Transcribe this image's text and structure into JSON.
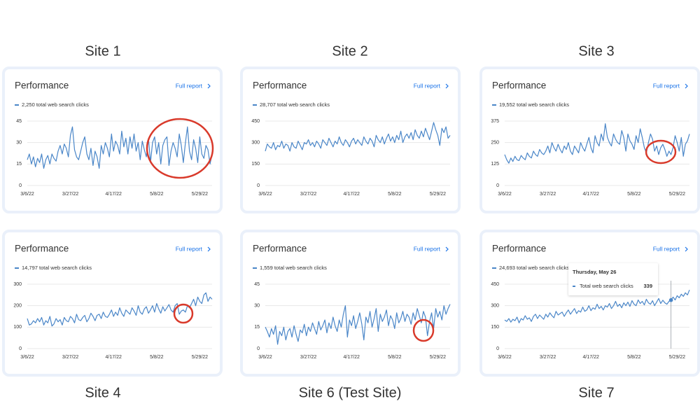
{
  "chart_data": [
    {
      "type": "line",
      "caption": "Site 1",
      "title": "Performance",
      "link": "Full report",
      "categories": [
        "3/6/22",
        null,
        null,
        null,
        null,
        null,
        null,
        null,
        null,
        null,
        null,
        null,
        null,
        null,
        null,
        null,
        null,
        null,
        null,
        null,
        null,
        "3/27/22",
        null,
        null,
        null,
        null,
        null,
        null,
        null,
        null,
        null,
        null,
        null,
        null,
        null,
        null,
        null,
        null,
        null,
        null,
        null,
        null,
        "4/17/22",
        null,
        null,
        null,
        null,
        null,
        null,
        null,
        null,
        null,
        null,
        null,
        null,
        null,
        null,
        null,
        null,
        null,
        null,
        null,
        null,
        "5/8/22",
        null,
        null,
        null,
        null,
        null,
        null,
        null,
        null,
        null,
        null,
        null,
        null,
        null,
        null,
        null,
        null,
        null,
        null,
        null,
        null,
        "5/29/22",
        null,
        null,
        null,
        null,
        null,
        null
      ],
      "series": [
        {
          "name": "2,250 total web search clicks",
          "color": "#4a86c8",
          "values": [
            18,
            22,
            15,
            20,
            13,
            19,
            16,
            22,
            12,
            18,
            21,
            15,
            22,
            19,
            17,
            24,
            28,
            22,
            29,
            26,
            20,
            35,
            41,
            25,
            20,
            18,
            24,
            30,
            34,
            22,
            18,
            26,
            14,
            24,
            20,
            12,
            28,
            22,
            30,
            26,
            20,
            36,
            24,
            31,
            28,
            22,
            38,
            27,
            33,
            22,
            34,
            26,
            36,
            24,
            30,
            18,
            31,
            25,
            20,
            33,
            16,
            30,
            34,
            22,
            30,
            15,
            28,
            32,
            34,
            14,
            24,
            30,
            26,
            20,
            36,
            28,
            16,
            30,
            41,
            24,
            18,
            32,
            26,
            16,
            34,
            22,
            19,
            28,
            25,
            15,
            22
          ]
        }
      ],
      "ylim": [
        0,
        45
      ],
      "yticks": [
        0,
        15,
        30,
        45
      ],
      "grid": true
    },
    {
      "type": "line",
      "caption": "Site 2",
      "title": "Performance",
      "link": "Full report",
      "categories": [
        "3/6/22",
        null,
        null,
        null,
        null,
        null,
        null,
        null,
        null,
        null,
        null,
        null,
        null,
        null,
        null,
        null,
        null,
        null,
        null,
        null,
        null,
        "3/27/22",
        null,
        null,
        null,
        null,
        null,
        null,
        null,
        null,
        null,
        null,
        null,
        null,
        null,
        null,
        null,
        null,
        null,
        null,
        null,
        null,
        "4/17/22",
        null,
        null,
        null,
        null,
        null,
        null,
        null,
        null,
        null,
        null,
        null,
        null,
        null,
        null,
        null,
        null,
        null,
        null,
        null,
        null,
        "5/8/22",
        null,
        null,
        null,
        null,
        null,
        null,
        null,
        null,
        null,
        null,
        null,
        null,
        null,
        null,
        null,
        null,
        null,
        null,
        null,
        null,
        "5/29/22",
        null,
        null,
        null,
        null,
        null,
        null
      ],
      "series": [
        {
          "name": "28,707 total web search clicks",
          "color": "#4a86c8",
          "values": [
            240,
            290,
            270,
            260,
            300,
            250,
            280,
            270,
            310,
            260,
            290,
            280,
            240,
            300,
            270,
            260,
            310,
            280,
            250,
            300,
            290,
            320,
            280,
            300,
            270,
            310,
            290,
            260,
            320,
            300,
            280,
            330,
            300,
            270,
            310,
            290,
            340,
            300,
            280,
            320,
            300,
            270,
            310,
            330,
            290,
            320,
            300,
            280,
            340,
            310,
            290,
            330,
            310,
            270,
            350,
            320,
            300,
            340,
            290,
            330,
            360,
            310,
            340,
            300,
            350,
            320,
            380,
            300,
            340,
            360,
            330,
            370,
            320,
            390,
            350,
            330,
            380,
            340,
            400,
            360,
            320,
            380,
            440,
            390,
            350,
            280,
            400,
            370,
            410,
            330,
            350
          ]
        }
      ],
      "ylim": [
        0,
        450
      ],
      "yticks": [
        0,
        150,
        300,
        450
      ],
      "grid": true
    },
    {
      "type": "line",
      "caption": "Site 3",
      "title": "Performance",
      "link": "Full report",
      "categories": [
        "3/6/22",
        null,
        null,
        null,
        null,
        null,
        null,
        null,
        null,
        null,
        null,
        null,
        null,
        null,
        null,
        null,
        null,
        null,
        null,
        null,
        null,
        "3/27/22",
        null,
        null,
        null,
        null,
        null,
        null,
        null,
        null,
        null,
        null,
        null,
        null,
        null,
        null,
        null,
        null,
        null,
        null,
        null,
        null,
        "4/17/22",
        null,
        null,
        null,
        null,
        null,
        null,
        null,
        null,
        null,
        null,
        null,
        null,
        null,
        null,
        null,
        null,
        null,
        null,
        null,
        null,
        "5/8/22",
        null,
        null,
        null,
        null,
        null,
        null,
        null,
        null,
        null,
        null,
        null,
        null,
        null,
        null,
        null,
        null,
        null,
        null,
        null,
        null,
        "5/29/22",
        null,
        null,
        null,
        null,
        null,
        null
      ],
      "series": [
        {
          "name": "19,552 total web search clicks",
          "color": "#4a86c8",
          "values": [
            180,
            150,
            130,
            160,
            140,
            170,
            150,
            145,
            175,
            160,
            150,
            190,
            170,
            160,
            200,
            180,
            170,
            210,
            190,
            180,
            200,
            230,
            190,
            250,
            220,
            200,
            240,
            210,
            190,
            230,
            210,
            250,
            200,
            180,
            230,
            210,
            190,
            250,
            220,
            200,
            240,
            280,
            220,
            190,
            290,
            250,
            230,
            300,
            260,
            360,
            280,
            250,
            230,
            300,
            270,
            250,
            240,
            320,
            280,
            200,
            300,
            260,
            240,
            210,
            290,
            250,
            330,
            280,
            220,
            190,
            250,
            300,
            270,
            200,
            230,
            180,
            220,
            240,
            210,
            170,
            200,
            180,
            220,
            290,
            250,
            200,
            280,
            170,
            240,
            260,
            300
          ]
        }
      ],
      "ylim": [
        0,
        375
      ],
      "yticks": [
        0,
        125,
        250,
        375
      ],
      "grid": true
    },
    {
      "type": "line",
      "caption": "Site 4",
      "title": "Performance",
      "link": "Full report",
      "categories": [
        "3/6/22",
        null,
        null,
        null,
        null,
        null,
        null,
        null,
        null,
        null,
        null,
        null,
        null,
        null,
        null,
        null,
        null,
        null,
        null,
        null,
        null,
        "3/27/22",
        null,
        null,
        null,
        null,
        null,
        null,
        null,
        null,
        null,
        null,
        null,
        null,
        null,
        null,
        null,
        null,
        null,
        null,
        null,
        null,
        "4/17/22",
        null,
        null,
        null,
        null,
        null,
        null,
        null,
        null,
        null,
        null,
        null,
        null,
        null,
        null,
        null,
        null,
        null,
        null,
        null,
        null,
        "5/8/22",
        null,
        null,
        null,
        null,
        null,
        null,
        null,
        null,
        null,
        null,
        null,
        null,
        null,
        null,
        null,
        null,
        null,
        null,
        null,
        null,
        "5/29/22",
        null,
        null,
        null,
        null,
        null,
        null
      ],
      "series": [
        {
          "name": "14,797 total web search clicks",
          "color": "#4a86c8",
          "values": [
            140,
            110,
            115,
            130,
            120,
            140,
            125,
            145,
            110,
            130,
            120,
            150,
            105,
            115,
            140,
            125,
            135,
            110,
            145,
            130,
            125,
            150,
            140,
            120,
            160,
            135,
            130,
            145,
            155,
            125,
            140,
            165,
            150,
            130,
            155,
            160,
            140,
            170,
            150,
            145,
            160,
            180,
            150,
            170,
            155,
            190,
            165,
            150,
            180,
            170,
            160,
            190,
            175,
            155,
            200,
            170,
            160,
            185,
            195,
            165,
            180,
            200,
            170,
            210,
            185,
            165,
            195,
            175,
            190,
            205,
            180,
            170,
            200,
            210,
            160,
            175,
            180,
            170,
            200,
            190,
            210,
            230,
            200,
            240,
            220,
            210,
            250,
            260,
            220,
            240,
            230
          ]
        }
      ],
      "ylim": [
        0,
        300
      ],
      "yticks": [
        0,
        100,
        200,
        300
      ],
      "grid": true
    },
    {
      "type": "line",
      "caption": "Site 6 (Test Site)",
      "title": "Performance",
      "link": "Full report",
      "categories": [
        "3/6/22",
        null,
        null,
        null,
        null,
        null,
        null,
        null,
        null,
        null,
        null,
        null,
        null,
        null,
        null,
        null,
        null,
        null,
        null,
        null,
        null,
        "3/27/22",
        null,
        null,
        null,
        null,
        null,
        null,
        null,
        null,
        null,
        null,
        null,
        null,
        null,
        null,
        null,
        null,
        null,
        null,
        null,
        null,
        "4/17/22",
        null,
        null,
        null,
        null,
        null,
        null,
        null,
        null,
        null,
        null,
        null,
        null,
        null,
        null,
        null,
        null,
        null,
        null,
        null,
        null,
        "5/8/22",
        null,
        null,
        null,
        null,
        null,
        null,
        null,
        null,
        null,
        null,
        null,
        null,
        null,
        null,
        null,
        null,
        null,
        null,
        null,
        null,
        "5/29/22",
        null,
        null,
        null,
        null,
        null,
        null
      ],
      "series": [
        {
          "name": "1,559 total web search clicks",
          "color": "#4a86c8",
          "values": [
            15,
            12,
            8,
            14,
            10,
            16,
            3,
            12,
            9,
            15,
            6,
            12,
            14,
            8,
            16,
            10,
            5,
            13,
            11,
            17,
            9,
            15,
            12,
            18,
            14,
            10,
            19,
            13,
            16,
            20,
            11,
            18,
            14,
            22,
            16,
            12,
            20,
            15,
            24,
            30,
            8,
            20,
            16,
            23,
            14,
            19,
            25,
            17,
            6,
            22,
            18,
            26,
            15,
            21,
            28,
            12,
            24,
            19,
            22,
            27,
            16,
            23,
            20,
            14,
            25,
            18,
            21,
            26,
            19,
            24,
            22,
            17,
            25,
            20,
            28,
            23,
            18,
            26,
            22,
            9,
            19,
            25,
            14,
            28,
            22,
            26,
            20,
            30,
            24,
            28,
            31
          ]
        }
      ],
      "ylim": [
        0,
        45
      ],
      "yticks": [
        0,
        15,
        30,
        45
      ],
      "grid": true
    },
    {
      "type": "line",
      "caption": "Site 7",
      "title": "Performance",
      "link": "Full report",
      "categories": [
        "3/6/22",
        null,
        null,
        null,
        null,
        null,
        null,
        null,
        null,
        null,
        null,
        null,
        null,
        null,
        null,
        null,
        null,
        null,
        null,
        null,
        null,
        "3/27/22",
        null,
        null,
        null,
        null,
        null,
        null,
        null,
        null,
        null,
        null,
        null,
        null,
        null,
        null,
        null,
        null,
        null,
        null,
        null,
        null,
        "4/17/22",
        null,
        null,
        null,
        null,
        null,
        null,
        null,
        null,
        null,
        null,
        null,
        null,
        null,
        null,
        null,
        null,
        null,
        null,
        null,
        null,
        "5/8/22",
        null,
        null,
        null,
        null,
        null,
        null,
        null,
        null,
        null,
        null,
        null,
        null,
        null,
        null,
        null,
        null,
        null,
        null,
        null,
        null,
        "5/29/22",
        null,
        null,
        null,
        null,
        null,
        null
      ],
      "series": [
        {
          "name": "24,693 total web search clicks",
          "color": "#4a86c8",
          "values": [
            200,
            190,
            210,
            185,
            205,
            195,
            220,
            180,
            210,
            200,
            230,
            205,
            215,
            190,
            225,
            240,
            210,
            235,
            220,
            205,
            240,
            220,
            250,
            230,
            215,
            260,
            235,
            245,
            255,
            225,
            250,
            270,
            240,
            260,
            280,
            245,
            265,
            255,
            290,
            260,
            270,
            300,
            265,
            285,
            275,
            310,
            280,
            295,
            270,
            300,
            290,
            315,
            280,
            300,
            330,
            295,
            310,
            285,
            320,
            300,
            325,
            295,
            335,
            310,
            300,
            340,
            315,
            330,
            305,
            345,
            320,
            310,
            335,
            300,
            325,
            350,
            315,
            338,
            320,
            310,
            330,
            339,
            360,
            340,
            370,
            355,
            380,
            365,
            390,
            375,
            410
          ]
        }
      ],
      "ylim": [
        0,
        450
      ],
      "yticks": [
        0,
        150,
        300,
        450
      ],
      "grid": true,
      "tooltip": {
        "date": "Thursday, May 26",
        "label": "Total web search clicks",
        "value": 339
      }
    }
  ]
}
